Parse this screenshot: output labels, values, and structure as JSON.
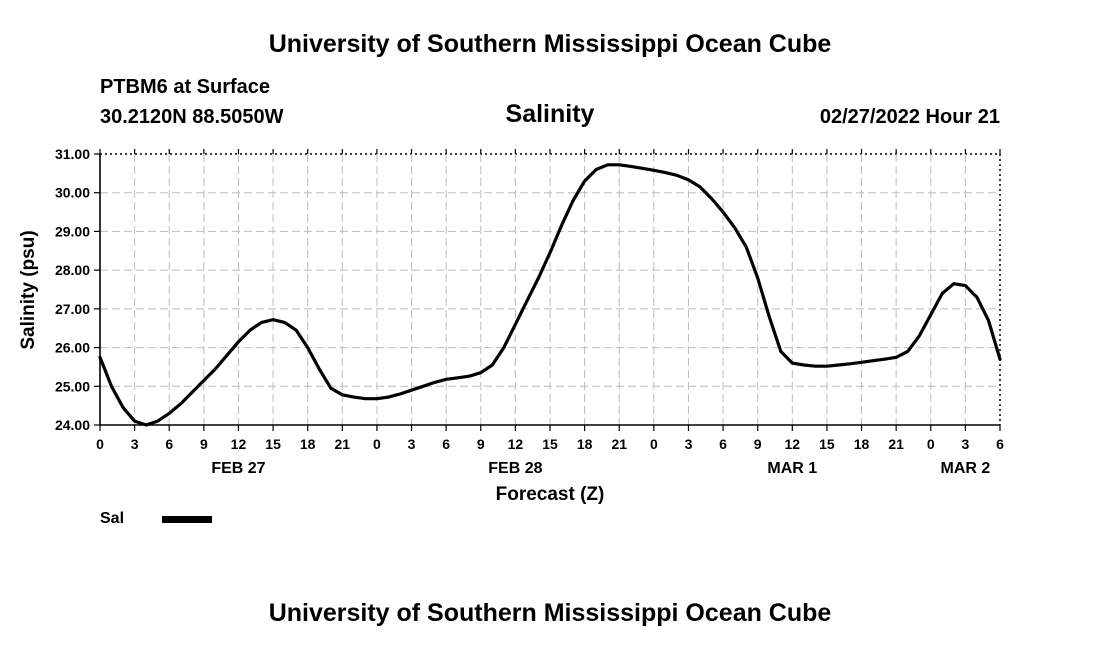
{
  "header": {
    "title": "University of Southern Mississippi Ocean Cube",
    "station": "PTBM6 at Surface",
    "coords": "30.2120N  88.5050W",
    "datetime": "02/27/2022 Hour 21"
  },
  "footer": {
    "title": "University of Southern Mississippi Ocean Cube"
  },
  "legend": {
    "label": "Sal",
    "color": "#000000"
  },
  "chart_data": {
    "type": "line",
    "title": "Salinity",
    "xlabel": "Forecast (Z)",
    "ylabel": "Salinity (psu)",
    "ylim": [
      24.0,
      31.0
    ],
    "xlim": [
      0,
      78
    ],
    "grid": true,
    "y_ticks": [
      "24.00",
      "25.00",
      "26.00",
      "27.00",
      "28.00",
      "29.00",
      "30.00",
      "31.00"
    ],
    "x_tick_labels": [
      "0",
      "3",
      "6",
      "9",
      "12",
      "15",
      "18",
      "21",
      "0",
      "3",
      "6",
      "9",
      "12",
      "15",
      "18",
      "21",
      "0",
      "3",
      "6",
      "9",
      "12",
      "15",
      "18",
      "21",
      "0",
      "3",
      "6"
    ],
    "day_labels": [
      {
        "label": "FEB 27",
        "hour": 12
      },
      {
        "label": "FEB 28",
        "hour": 36
      },
      {
        "label": "MAR 1",
        "hour": 60
      },
      {
        "label": "MAR 2",
        "hour": 75
      }
    ],
    "series": [
      {
        "name": "Sal",
        "x": [
          0,
          1,
          2,
          3,
          4,
          5,
          6,
          7,
          8,
          9,
          10,
          11,
          12,
          13,
          14,
          15,
          16,
          17,
          18,
          19,
          20,
          21,
          22,
          23,
          24,
          25,
          26,
          27,
          28,
          29,
          30,
          31,
          32,
          33,
          34,
          35,
          36,
          37,
          38,
          39,
          40,
          41,
          42,
          43,
          44,
          45,
          46,
          47,
          48,
          49,
          50,
          51,
          52,
          53,
          54,
          55,
          56,
          57,
          58,
          59,
          60,
          61,
          62,
          63,
          64,
          65,
          66,
          67,
          68,
          69,
          70,
          71,
          72,
          73,
          74,
          75,
          76,
          77,
          78
        ],
        "values": [
          25.75,
          25.0,
          24.45,
          24.1,
          24.0,
          24.1,
          24.3,
          24.55,
          24.85,
          25.15,
          25.45,
          25.8,
          26.15,
          26.45,
          26.65,
          26.72,
          26.65,
          26.45,
          26.0,
          25.45,
          24.95,
          24.78,
          24.72,
          24.68,
          24.68,
          24.72,
          24.8,
          24.9,
          25.0,
          25.1,
          25.18,
          25.22,
          25.26,
          25.35,
          25.55,
          26.0,
          26.6,
          27.2,
          27.8,
          28.45,
          29.15,
          29.8,
          30.3,
          30.6,
          30.72,
          30.72,
          30.68,
          30.63,
          30.58,
          30.52,
          30.45,
          30.33,
          30.15,
          29.85,
          29.5,
          29.1,
          28.6,
          27.8,
          26.8,
          25.9,
          25.6,
          25.55,
          25.52,
          25.52,
          25.55,
          25.58,
          25.62,
          25.66,
          25.7,
          25.75,
          25.9,
          26.3,
          26.85,
          27.4,
          27.65,
          27.6,
          27.3,
          26.7,
          25.7
        ]
      }
    ]
  }
}
